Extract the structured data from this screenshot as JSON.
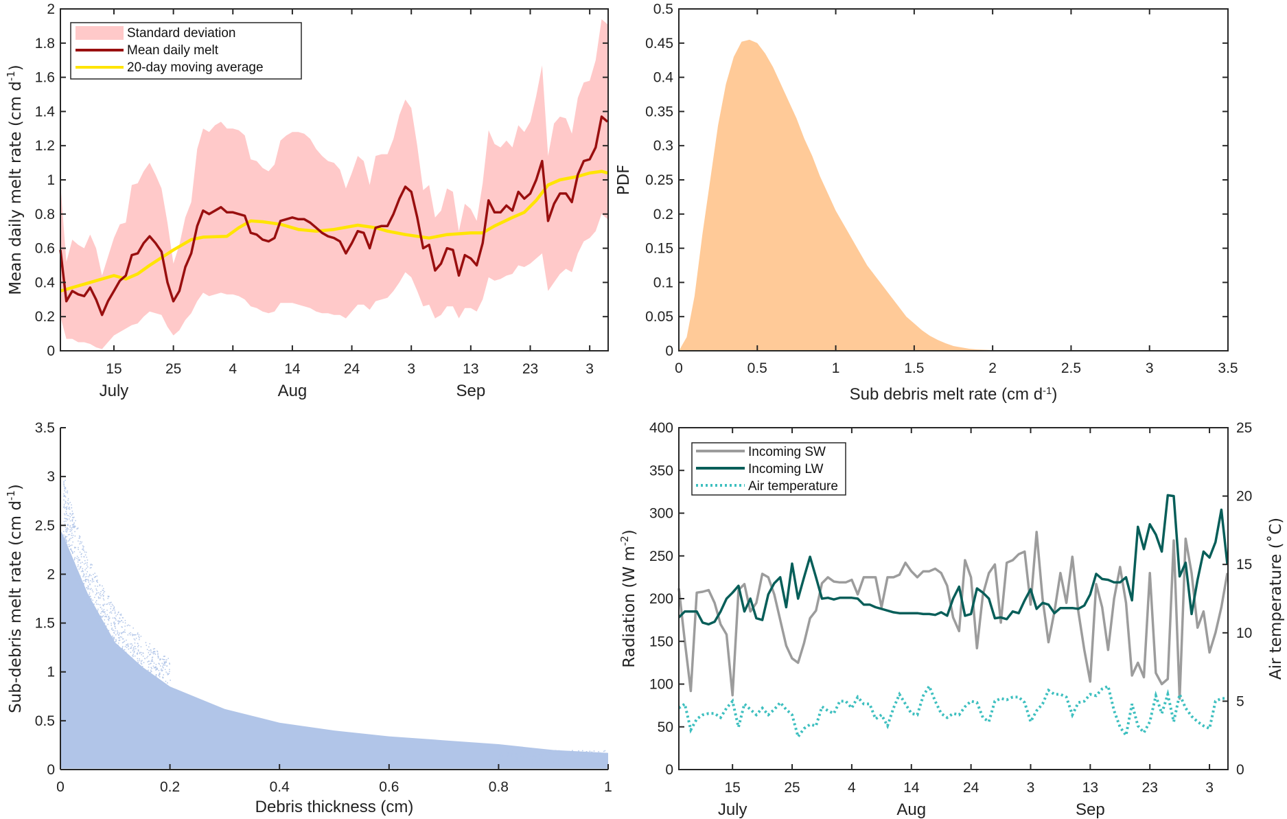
{
  "colors": {
    "sd_band": "#ffc9c9",
    "mean_melt": "#990f0f",
    "moving_avg": "#ffe400",
    "pdf_fill": "#ffca98",
    "scatter": "#b1c5e8",
    "sw": "#9c9c9c",
    "lw": "#075e59",
    "air_temp": "#3dbfbf",
    "axis": "#262626"
  },
  "chart_data": [
    {
      "type": "line",
      "ylim": [
        0,
        2
      ],
      "xlim": [
        "Jul 6",
        "Oct 6"
      ],
      "yticks": [
        0,
        0.2,
        0.4,
        0.6,
        0.8,
        1,
        1.2,
        1.4,
        1.6,
        1.8,
        2
      ],
      "xticks": [
        {
          "date": "Jul 15",
          "label": "15"
        },
        {
          "date": "Jul 25",
          "label": "25"
        },
        {
          "date": "Aug 4",
          "label": "4"
        },
        {
          "date": "Aug 14",
          "label": "14"
        },
        {
          "date": "Aug 24",
          "label": "24"
        },
        {
          "date": "Sep 3",
          "label": "3"
        },
        {
          "date": "Sep 13",
          "label": "13"
        },
        {
          "date": "Sep 23",
          "label": "23"
        },
        {
          "date": "Oct 3",
          "label": "3"
        }
      ],
      "month_labels": [
        {
          "date": "Jul 15",
          "label": "July"
        },
        {
          "date": "Aug 14",
          "label": "Aug"
        },
        {
          "date": "Sep 13",
          "label": "Sep"
        }
      ],
      "ylabel": [
        "Mean daily melt rate (cm d",
        "-1",
        ")"
      ],
      "legend": [
        "Standard deviation",
        "Mean daily melt",
        "20-day moving average"
      ],
      "legend_position": "top-left",
      "grid": false,
      "dates": [
        "Jul 6",
        "Jul 7",
        "Jul 8",
        "Jul 9",
        "Jul 10",
        "Jul 11",
        "Jul 12",
        "Jul 13",
        "Jul 14",
        "Jul 15",
        "Jul 16",
        "Jul 17",
        "Jul 18",
        "Jul 19",
        "Jul 20",
        "Jul 21",
        "Jul 22",
        "Jul 23",
        "Jul 24",
        "Jul 25",
        "Jul 26",
        "Jul 27",
        "Jul 28",
        "Jul 29",
        "Jul 30",
        "Jul 31",
        "Aug 1",
        "Aug 2",
        "Aug 3",
        "Aug 4",
        "Aug 5",
        "Aug 6",
        "Aug 7",
        "Aug 8",
        "Aug 9",
        "Aug 10",
        "Aug 11",
        "Aug 12",
        "Aug 13",
        "Aug 14",
        "Aug 15",
        "Aug 16",
        "Aug 17",
        "Aug 18",
        "Aug 19",
        "Aug 20",
        "Aug 21",
        "Aug 22",
        "Aug 23",
        "Aug 24",
        "Aug 25",
        "Aug 26",
        "Aug 27",
        "Aug 28",
        "Aug 29",
        "Aug 30",
        "Aug 31",
        "Sep 1",
        "Sep 2",
        "Sep 3",
        "Sep 4",
        "Sep 5",
        "Sep 6",
        "Sep 7",
        "Sep 8",
        "Sep 9",
        "Sep 10",
        "Sep 11",
        "Sep 12",
        "Sep 13",
        "Sep 14",
        "Sep 15",
        "Sep 16",
        "Sep 17",
        "Sep 18",
        "Sep 19",
        "Sep 20",
        "Sep 21",
        "Sep 22",
        "Sep 23",
        "Sep 24",
        "Sep 25",
        "Sep 26",
        "Sep 27",
        "Sep 28",
        "Sep 29",
        "Sep 30",
        "Oct 1",
        "Oct 2",
        "Oct 3",
        "Oct 4",
        "Oct 5",
        "Oct 6"
      ],
      "mean_daily_melt": [
        0.59,
        0.29,
        0.35,
        0.33,
        0.32,
        0.37,
        0.3,
        0.21,
        0.29,
        0.35,
        0.41,
        0.44,
        0.56,
        0.57,
        0.63,
        0.67,
        0.63,
        0.58,
        0.4,
        0.29,
        0.35,
        0.49,
        0.57,
        0.73,
        0.82,
        0.8,
        0.82,
        0.84,
        0.81,
        0.81,
        0.8,
        0.79,
        0.69,
        0.68,
        0.65,
        0.64,
        0.66,
        0.76,
        0.77,
        0.78,
        0.77,
        0.77,
        0.75,
        0.72,
        0.69,
        0.67,
        0.66,
        0.64,
        0.57,
        0.63,
        0.7,
        0.69,
        0.6,
        0.72,
        0.73,
        0.73,
        0.8,
        0.89,
        0.96,
        0.93,
        0.78,
        0.6,
        0.62,
        0.47,
        0.51,
        0.6,
        0.59,
        0.44,
        0.56,
        0.54,
        0.5,
        0.63,
        0.88,
        0.81,
        0.81,
        0.85,
        0.82,
        0.93,
        0.89,
        0.92,
        1.0,
        1.11,
        0.76,
        0.86,
        0.92,
        0.92,
        0.87,
        1.03,
        1.11,
        1.12,
        1.19,
        1.37,
        1.34
      ],
      "sd_upper": [
        0.98,
        0.52,
        0.65,
        0.62,
        0.6,
        0.68,
        0.6,
        0.44,
        0.55,
        0.66,
        0.74,
        0.75,
        0.97,
        0.98,
        1.05,
        1.1,
        1.03,
        0.95,
        0.75,
        0.51,
        0.62,
        0.78,
        0.87,
        1.18,
        1.3,
        1.28,
        1.32,
        1.34,
        1.3,
        1.3,
        1.29,
        1.26,
        1.12,
        1.11,
        1.07,
        1.05,
        1.09,
        1.23,
        1.26,
        1.28,
        1.28,
        1.27,
        1.24,
        1.18,
        1.14,
        1.11,
        1.1,
        1.06,
        0.95,
        1.04,
        1.14,
        1.11,
        0.97,
        1.14,
        1.15,
        1.15,
        1.24,
        1.38,
        1.47,
        1.42,
        1.2,
        0.94,
        0.97,
        0.78,
        0.82,
        0.95,
        0.93,
        0.7,
        0.86,
        0.83,
        0.76,
        0.98,
        1.29,
        1.21,
        1.19,
        1.23,
        1.19,
        1.32,
        1.28,
        1.34,
        1.49,
        1.67,
        1.14,
        1.33,
        1.37,
        1.36,
        1.27,
        1.48,
        1.57,
        1.58,
        1.7,
        1.94,
        1.91
      ],
      "sd_lower": [
        0.2,
        0.07,
        0.07,
        0.05,
        0.05,
        0.04,
        0.02,
        0.01,
        0.05,
        0.09,
        0.11,
        0.13,
        0.15,
        0.16,
        0.2,
        0.23,
        0.22,
        0.21,
        0.14,
        0.09,
        0.12,
        0.18,
        0.22,
        0.29,
        0.34,
        0.32,
        0.33,
        0.34,
        0.33,
        0.33,
        0.32,
        0.3,
        0.26,
        0.25,
        0.23,
        0.22,
        0.23,
        0.28,
        0.28,
        0.28,
        0.27,
        0.26,
        0.25,
        0.23,
        0.22,
        0.22,
        0.21,
        0.21,
        0.19,
        0.23,
        0.27,
        0.27,
        0.24,
        0.29,
        0.3,
        0.31,
        0.35,
        0.4,
        0.46,
        0.43,
        0.35,
        0.26,
        0.27,
        0.19,
        0.21,
        0.26,
        0.26,
        0.19,
        0.25,
        0.25,
        0.23,
        0.3,
        0.43,
        0.41,
        0.42,
        0.44,
        0.45,
        0.5,
        0.49,
        0.51,
        0.54,
        0.57,
        0.35,
        0.4,
        0.45,
        0.48,
        0.46,
        0.57,
        0.64,
        0.66,
        0.7,
        0.8,
        0.77
      ],
      "moving_average": {
        "dates": [
          "Jul 6",
          "Jul 15",
          "Jul 17",
          "Jul 19",
          "Jul 21",
          "Jul 25",
          "Jul 28",
          "Jul 30",
          "Aug 3",
          "Aug 5",
          "Aug 7",
          "Aug 9",
          "Aug 12",
          "Aug 15",
          "Aug 18",
          "Aug 21",
          "Aug 25",
          "Aug 28",
          "Aug 30",
          "Sep 2",
          "Sep 6",
          "Sep 9",
          "Sep 13",
          "Sep 15",
          "Sep 17",
          "Sep 20",
          "Sep 22",
          "Sep 24",
          "Sep 26",
          "Sep 28",
          "Oct 1",
          "Oct 3",
          "Oct 5",
          "Oct 6"
        ],
        "values": [
          0.35,
          0.44,
          0.42,
          0.45,
          0.5,
          0.59,
          0.65,
          0.665,
          0.67,
          0.72,
          0.76,
          0.755,
          0.74,
          0.71,
          0.7,
          0.71,
          0.735,
          0.72,
          0.7,
          0.68,
          0.66,
          0.68,
          0.69,
          0.69,
          0.73,
          0.78,
          0.81,
          0.88,
          0.97,
          1.0,
          1.02,
          1.04,
          1.05,
          1.04
        ]
      }
    },
    {
      "type": "bar",
      "xlim": [
        0,
        3.5
      ],
      "ylim": [
        0,
        0.5
      ],
      "xticks": [
        0,
        0.5,
        1,
        1.5,
        2,
        2.5,
        3,
        3.5
      ],
      "yticks": [
        0,
        0.05,
        0.1,
        0.15,
        0.2,
        0.25,
        0.3,
        0.35,
        0.4,
        0.45,
        0.5
      ],
      "xlabel": [
        "Sub debris melt rate (cm d",
        "-1",
        ")"
      ],
      "ylabel": "PDF",
      "grid": false,
      "x": [
        0,
        0.05,
        0.1,
        0.15,
        0.2,
        0.25,
        0.3,
        0.35,
        0.4,
        0.45,
        0.5,
        0.55,
        0.6,
        0.65,
        0.7,
        0.75,
        0.8,
        0.85,
        0.9,
        0.95,
        1.0,
        1.05,
        1.1,
        1.15,
        1.2,
        1.25,
        1.3,
        1.35,
        1.4,
        1.45,
        1.5,
        1.55,
        1.6,
        1.65,
        1.7,
        1.75,
        1.8,
        1.85,
        1.9,
        2.0,
        2.2
      ],
      "y": [
        0,
        0.02,
        0.08,
        0.17,
        0.25,
        0.33,
        0.39,
        0.43,
        0.452,
        0.455,
        0.45,
        0.435,
        0.415,
        0.39,
        0.365,
        0.34,
        0.31,
        0.285,
        0.255,
        0.23,
        0.205,
        0.185,
        0.165,
        0.145,
        0.125,
        0.11,
        0.095,
        0.08,
        0.065,
        0.05,
        0.04,
        0.03,
        0.022,
        0.016,
        0.011,
        0.007,
        0.005,
        0.003,
        0.002,
        0.001,
        0
      ]
    },
    {
      "type": "scatter",
      "xlim": [
        0,
        1
      ],
      "ylim": [
        0,
        3.5
      ],
      "xticks": [
        0,
        0.2,
        0.4,
        0.6,
        0.8,
        1
      ],
      "yticks": [
        0,
        0.5,
        1,
        1.5,
        2,
        2.5,
        3,
        3.5
      ],
      "xlabel": "Debris thickness (cm)",
      "ylabel": [
        "Sub-debris melt rate (cm d",
        "-1",
        ")"
      ],
      "grid": false,
      "upper_envelope": {
        "x": [
          0,
          0.005,
          0.02,
          0.05,
          0.1,
          0.15,
          0.2,
          0.3,
          0.4,
          0.5,
          0.6,
          0.7,
          0.8,
          0.9,
          1.0
        ],
        "y": [
          2.45,
          2.4,
          2.2,
          1.8,
          1.3,
          1.05,
          0.85,
          0.62,
          0.48,
          0.4,
          0.34,
          0.3,
          0.26,
          0.2,
          0.17
        ]
      },
      "max_value": 3.0
    },
    {
      "type": "line",
      "xlim": [
        "Jul 6",
        "Oct 6"
      ],
      "ylim": [
        0,
        400
      ],
      "y2lim": [
        0,
        25
      ],
      "yticks": [
        0,
        50,
        100,
        150,
        200,
        250,
        300,
        350,
        400
      ],
      "y2ticks": [
        0,
        5,
        10,
        15,
        20,
        25
      ],
      "xticks": [
        {
          "date": "Jul 15",
          "label": "15"
        },
        {
          "date": "Jul 25",
          "label": "25"
        },
        {
          "date": "Aug 4",
          "label": "4"
        },
        {
          "date": "Aug 14",
          "label": "14"
        },
        {
          "date": "Aug 24",
          "label": "24"
        },
        {
          "date": "Sep 3",
          "label": "3"
        },
        {
          "date": "Sep 13",
          "label": "13"
        },
        {
          "date": "Sep 23",
          "label": "23"
        },
        {
          "date": "Oct 3",
          "label": "3"
        }
      ],
      "month_labels": [
        {
          "date": "Jul 15",
          "label": "July"
        },
        {
          "date": "Aug 14",
          "label": "Aug"
        },
        {
          "date": "Sep 13",
          "label": "Sep"
        }
      ],
      "ylabel": [
        "Radiation (W m",
        "-2",
        ")"
      ],
      "y2label": "Air temperature (˚C)",
      "legend": [
        "Incoming SW",
        "Incoming LW",
        "Air temperature"
      ],
      "legend_position": "top-left",
      "grid": false,
      "incoming_sw": [
        212,
        150,
        92,
        207,
        208,
        210,
        195,
        170,
        158,
        87,
        210,
        217,
        185,
        195,
        229,
        225,
        205,
        175,
        145,
        130,
        125,
        148,
        177,
        186,
        218,
        225,
        220,
        219,
        219,
        222,
        205,
        225,
        225,
        225,
        190,
        225,
        225,
        228,
        242,
        232,
        225,
        232,
        232,
        235,
        230,
        215,
        178,
        162,
        245,
        225,
        142,
        205,
        230,
        240,
        172,
        242,
        245,
        252,
        255,
        193,
        278,
        200,
        149,
        185,
        230,
        195,
        249,
        185,
        140,
        103,
        217,
        190,
        140,
        200,
        237,
        195,
        110,
        125,
        108,
        230,
        113,
        100,
        106,
        268,
        83,
        270,
        230,
        166,
        185,
        137,
        160,
        190,
        230
      ],
      "incoming_lw": [
        178,
        185,
        185,
        185,
        172,
        170,
        173,
        185,
        200,
        207,
        215,
        185,
        200,
        177,
        175,
        205,
        218,
        225,
        190,
        241,
        200,
        225,
        249,
        225,
        200,
        201,
        199,
        201,
        201,
        201,
        200,
        193,
        193,
        190,
        188,
        186,
        184,
        183,
        183,
        183,
        183,
        182,
        182,
        181,
        184,
        180,
        200,
        214,
        180,
        182,
        212,
        207,
        200,
        177,
        178,
        176,
        185,
        183,
        198,
        211,
        188,
        195,
        193,
        183,
        189,
        189,
        189,
        188,
        192,
        205,
        229,
        223,
        222,
        219,
        219,
        225,
        198,
        284,
        258,
        287,
        275,
        255,
        321,
        320,
        226,
        242,
        182,
        222,
        255,
        248,
        266,
        304,
        240
      ],
      "air_temperature": [
        4.5,
        4.8,
        2.9,
        3.7,
        4,
        4.1,
        4.1,
        3.8,
        4.5,
        5,
        3.1,
        4.8,
        4.4,
        4,
        4.5,
        4,
        4.4,
        4.9,
        4.4,
        4,
        2.4,
        3,
        3.3,
        3.2,
        4.6,
        4.3,
        4.1,
        5,
        5,
        4.5,
        5.3,
        4.8,
        4.8,
        3.7,
        4,
        3.2,
        4.5,
        5.5,
        4.8,
        4.1,
        4,
        5.4,
        6.1,
        5,
        4.1,
        3.8,
        4.1,
        4,
        4.6,
        5,
        4.9,
        3.8,
        3.5,
        5,
        5.2,
        5.1,
        5.3,
        5.3,
        4.9,
        3.5,
        4.3,
        4.8,
        5.8,
        5.5,
        5.5,
        5.3,
        4,
        4.9,
        5,
        5.5,
        5.4,
        5.9,
        6.1,
        4.3,
        3.1,
        2.5,
        4.8,
        3.2,
        2.7,
        3.5,
        5.4,
        4.1,
        5.5,
        3.5,
        5.5,
        4.5,
        3.9,
        3.5,
        3.2,
        3,
        5,
        5.2,
        5.2
      ]
    }
  ]
}
